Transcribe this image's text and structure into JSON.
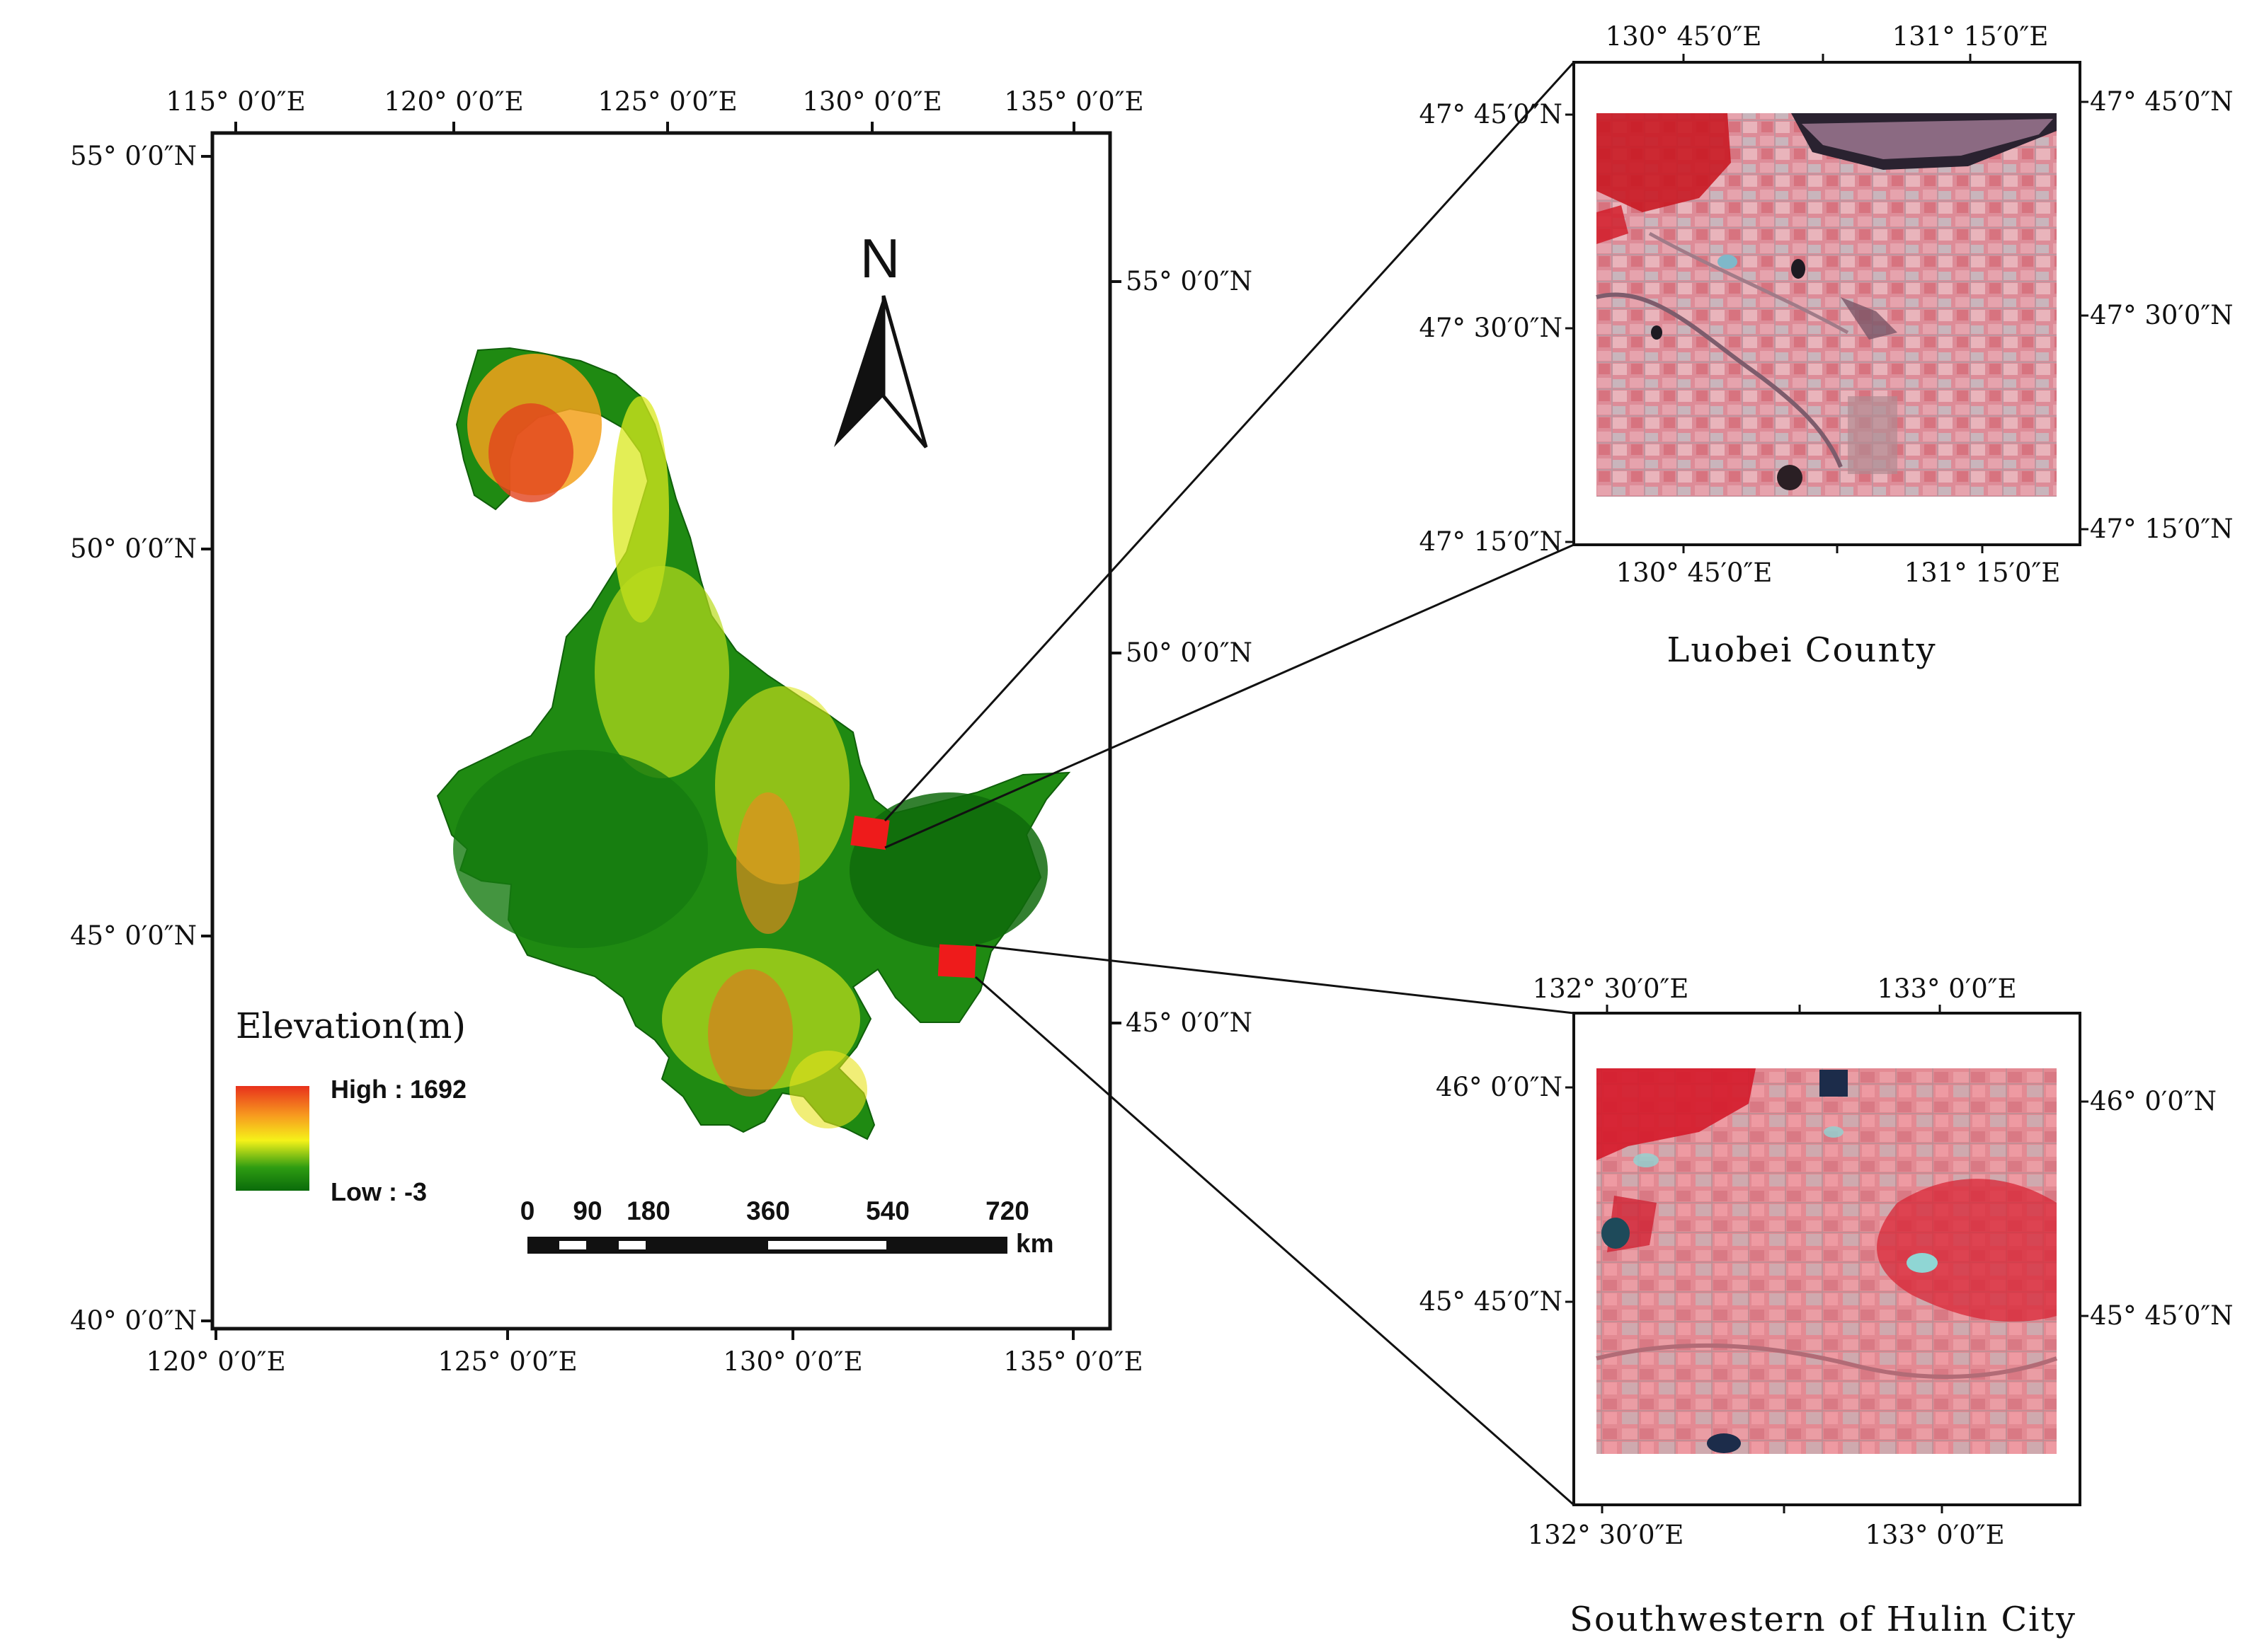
{
  "main_map": {
    "top_ticks": [
      "115° 0′0″E",
      "120° 0′0″E",
      "125° 0′0″E",
      "130° 0′0″E",
      "135° 0′0″E"
    ],
    "bottom_ticks": [
      "120° 0′0″E",
      "125° 0′0″E",
      "130° 0′0″E",
      "135° 0′0″E"
    ],
    "left_ticks": [
      "55° 0′0″N",
      "50° 0′0″N",
      "45° 0′0″N",
      "40° 0′0″N"
    ],
    "right_ticks": [
      "55° 0′0″N",
      "50° 0′0″N",
      "45° 0′0″N"
    ],
    "north_arrow": {
      "label": "N",
      "icon": "north-arrow-icon"
    },
    "legend": {
      "title": "Elevation(m)",
      "high_label": "High : 1692",
      "low_label": "Low : -3",
      "high_value": 1692,
      "low_value": -3,
      "colors": [
        "#e8311c",
        "#f79a1f",
        "#f5f219",
        "#2e9c12",
        "#0a6b0a"
      ]
    },
    "scale_bar": {
      "labels": [
        "0",
        "90",
        "180",
        "360",
        "540",
        "720"
      ],
      "unit": "km"
    },
    "study_area_color": "#ee1b1b"
  },
  "inset_luobei": {
    "caption": "Luobei County",
    "top_ticks": [
      "130° 45′0″E",
      "131° 15′0″E"
    ],
    "bottom_ticks": [
      "130° 45′0″E",
      "131° 15′0″E"
    ],
    "left_ticks": [
      "47° 45′0″N",
      "47° 30′0″N",
      "47° 15′0″N"
    ],
    "right_ticks": [
      "47° 45′0″N",
      "47° 30′0″N",
      "47° 15′0″N"
    ]
  },
  "inset_hulin": {
    "caption": "Southwestern of Hulin City",
    "top_ticks": [
      "132° 30′0″E",
      "133° 0′0″E"
    ],
    "bottom_ticks": [
      "132° 30′0″E",
      "133° 0′0″E"
    ],
    "left_ticks": [
      "46° 0′0″N",
      "45° 45′0″N"
    ],
    "right_ticks": [
      "46° 0′0″N",
      "45° 45′0″N"
    ]
  }
}
